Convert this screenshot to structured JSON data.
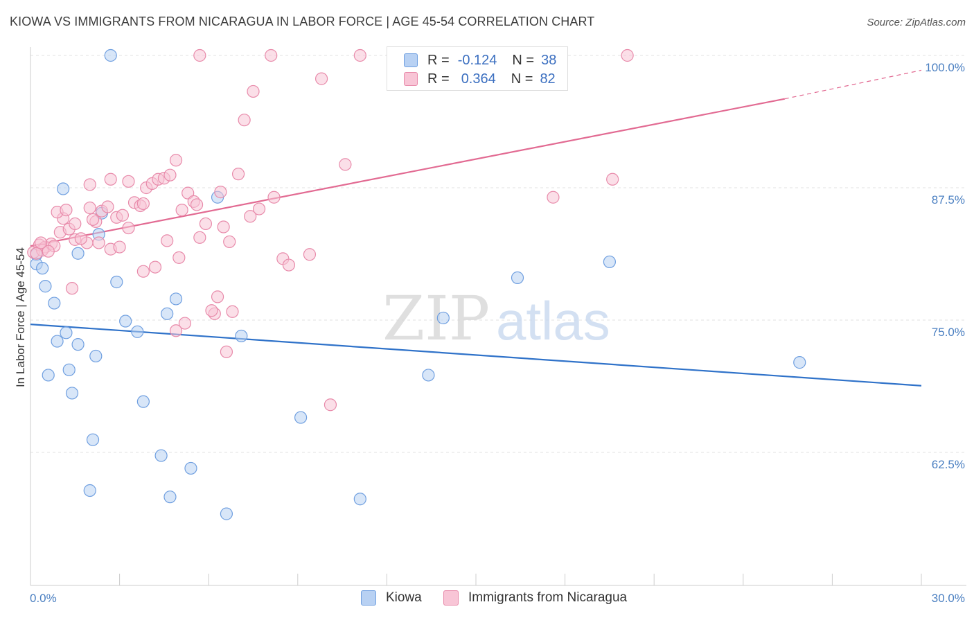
{
  "title": "KIOWA VS IMMIGRANTS FROM NICARAGUA IN LABOR FORCE | AGE 45-54 CORRELATION CHART",
  "source": "Source: ZipAtlas.com",
  "watermark": {
    "zip": "ZIP",
    "atlas": "atlas"
  },
  "legend": {
    "rows": [
      {
        "r_label": "R =",
        "r_value": "-0.124",
        "n_label": "N =",
        "n_value": "38",
        "fill": "#b8d1f3",
        "stroke": "#6f9fe0"
      },
      {
        "r_label": "R =",
        "r_value": "0.364",
        "n_label": "N =",
        "n_value": "82",
        "fill": "#f8c5d6",
        "stroke": "#e88aaa"
      }
    ]
  },
  "bottom_legend": [
    {
      "label": "Kiowa",
      "fill": "#b8d1f3",
      "stroke": "#6f9fe0"
    },
    {
      "label": "Immigrants from Nicaragua",
      "fill": "#f8c5d6",
      "stroke": "#e88aaa"
    }
  ],
  "chart_data": {
    "type": "scatter",
    "title": "KIOWA VS IMMIGRANTS FROM NICARAGUA IN LABOR FORCE | AGE 45-54 CORRELATION CHART",
    "xlabel": "",
    "ylabel": "In Labor Force | Age 45-54",
    "xlim": [
      0,
      30
    ],
    "ylim": [
      50,
      100
    ],
    "x_tick_labels": [
      {
        "value": 0,
        "label": "0.0%"
      },
      {
        "value": 30,
        "label": "30.0%"
      }
    ],
    "y_tick_labels": [
      {
        "value": 100,
        "label": "100.0%"
      },
      {
        "value": 87.5,
        "label": "87.5%"
      },
      {
        "value": 75,
        "label": "75.0%"
      },
      {
        "value": 62.5,
        "label": "62.5%"
      }
    ],
    "series": [
      {
        "name": "Kiowa",
        "color": "#6f9fe0",
        "fill": "#b8d1f3",
        "line_color": "#2f72c9",
        "r": -0.124,
        "n": 38,
        "trend": {
          "x0": 0,
          "y0": 74.6,
          "x1": 30,
          "y1": 68.8
        },
        "points": [
          [
            0.2,
            81.2
          ],
          [
            0.2,
            80.3
          ],
          [
            0.4,
            79.9
          ],
          [
            0.5,
            78.2
          ],
          [
            0.8,
            76.6
          ],
          [
            1.1,
            87.4
          ],
          [
            2.7,
            100.0
          ],
          [
            0.9,
            73.0
          ],
          [
            1.2,
            73.8
          ],
          [
            1.6,
            72.7
          ],
          [
            2.2,
            71.6
          ],
          [
            0.6,
            69.8
          ],
          [
            1.3,
            70.3
          ],
          [
            1.4,
            68.1
          ],
          [
            2.1,
            63.7
          ],
          [
            2.0,
            58.9
          ],
          [
            1.6,
            81.3
          ],
          [
            2.3,
            83.1
          ],
          [
            2.4,
            85.1
          ],
          [
            2.9,
            78.6
          ],
          [
            3.2,
            74.9
          ],
          [
            3.6,
            73.9
          ],
          [
            3.8,
            67.3
          ],
          [
            4.4,
            62.2
          ],
          [
            4.6,
            75.6
          ],
          [
            4.9,
            77.0
          ],
          [
            4.7,
            58.3
          ],
          [
            5.4,
            61.0
          ],
          [
            6.3,
            86.6
          ],
          [
            6.6,
            56.7
          ],
          [
            7.1,
            73.5
          ],
          [
            9.1,
            65.8
          ],
          [
            11.1,
            58.1
          ],
          [
            13.4,
            69.8
          ],
          [
            13.9,
            75.2
          ],
          [
            16.4,
            79.0
          ],
          [
            19.5,
            80.5
          ],
          [
            25.9,
            71.0
          ]
        ]
      },
      {
        "name": "Immigrants from Nicaragua",
        "color": "#e88aaa",
        "fill": "#f8c5d6",
        "line_color": "#e26a92",
        "r": 0.364,
        "n": 82,
        "trend": {
          "x0": 0,
          "y0": 82.0,
          "x1": 25.4,
          "y1": 95.9,
          "dash_x1": 30,
          "dash_y1": 98.6
        },
        "points": [
          [
            0.1,
            81.4
          ],
          [
            0.3,
            82.1
          ],
          [
            0.5,
            81.9
          ],
          [
            0.7,
            82.2
          ],
          [
            0.4,
            81.6
          ],
          [
            0.2,
            81.3
          ],
          [
            0.8,
            82.0
          ],
          [
            0.6,
            81.5
          ],
          [
            1.0,
            83.3
          ],
          [
            1.1,
            84.6
          ],
          [
            1.3,
            83.6
          ],
          [
            1.5,
            82.6
          ],
          [
            1.9,
            82.3
          ],
          [
            1.4,
            78.0
          ],
          [
            0.9,
            85.2
          ],
          [
            2.0,
            85.6
          ],
          [
            2.2,
            84.3
          ],
          [
            2.4,
            85.3
          ],
          [
            2.6,
            85.7
          ],
          [
            2.9,
            84.7
          ],
          [
            2.3,
            82.3
          ],
          [
            2.7,
            81.7
          ],
          [
            3.1,
            84.9
          ],
          [
            3.3,
            83.7
          ],
          [
            3.5,
            86.1
          ],
          [
            3.7,
            85.8
          ],
          [
            3.9,
            87.5
          ],
          [
            4.1,
            87.9
          ],
          [
            4.3,
            88.3
          ],
          [
            4.5,
            88.4
          ],
          [
            4.7,
            88.7
          ],
          [
            4.9,
            90.1
          ],
          [
            5.1,
            85.4
          ],
          [
            5.3,
            87.0
          ],
          [
            5.5,
            86.2
          ],
          [
            5.7,
            82.8
          ],
          [
            5.9,
            84.1
          ],
          [
            6.2,
            75.6
          ],
          [
            6.4,
            87.1
          ],
          [
            6.6,
            72.0
          ],
          [
            6.8,
            75.8
          ],
          [
            7.0,
            88.8
          ],
          [
            7.2,
            93.9
          ],
          [
            7.5,
            96.6
          ],
          [
            7.7,
            85.5
          ],
          [
            8.2,
            86.6
          ],
          [
            8.5,
            80.8
          ],
          [
            8.7,
            80.2
          ],
          [
            9.4,
            81.2
          ],
          [
            9.8,
            97.8
          ],
          [
            10.1,
            67.0
          ],
          [
            10.6,
            89.7
          ],
          [
            11.1,
            100.0
          ],
          [
            5.7,
            100.0
          ],
          [
            8.1,
            100.0
          ],
          [
            16.6,
            100.0
          ],
          [
            16.8,
            100.0
          ],
          [
            17.6,
            86.6
          ],
          [
            20.1,
            100.0
          ],
          [
            19.6,
            88.3
          ],
          [
            2.0,
            87.8
          ],
          [
            2.7,
            88.3
          ],
          [
            3.3,
            88.1
          ],
          [
            1.5,
            84.1
          ],
          [
            3.8,
            86.0
          ],
          [
            4.2,
            80.0
          ],
          [
            3.8,
            79.6
          ],
          [
            4.6,
            82.5
          ],
          [
            5.0,
            80.9
          ],
          [
            5.2,
            74.7
          ],
          [
            6.1,
            75.9
          ],
          [
            6.7,
            82.4
          ],
          [
            4.9,
            74.0
          ],
          [
            3.0,
            81.9
          ],
          [
            2.1,
            84.5
          ],
          [
            1.7,
            82.7
          ],
          [
            6.3,
            77.2
          ],
          [
            7.4,
            84.8
          ],
          [
            6.5,
            83.8
          ],
          [
            1.2,
            85.4
          ],
          [
            0.35,
            82.3
          ],
          [
            5.6,
            85.9
          ]
        ]
      }
    ],
    "grid": true,
    "legend_position": "top-center"
  }
}
